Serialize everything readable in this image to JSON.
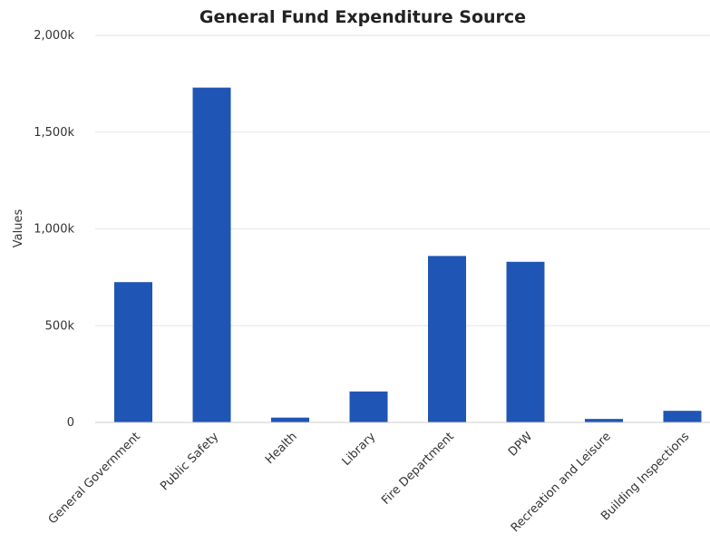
{
  "chart_data": {
    "type": "bar",
    "title": "General Fund Expenditure Source",
    "xlabel": "",
    "ylabel": "Values",
    "categories": [
      "General Government",
      "Public Safety",
      "Health",
      "Library",
      "Fire Department",
      "DPW",
      "Recreation and Leisure",
      "Building Inspections"
    ],
    "values": [
      725000,
      1730000,
      25000,
      160000,
      860000,
      830000,
      18000,
      60000
    ],
    "ylim": [
      0,
      2000000
    ],
    "yticks": [
      0,
      500000,
      1000000,
      1500000,
      2000000
    ],
    "ytick_labels": [
      "0",
      "500k",
      "1,000k",
      "1,500k",
      "2,000k"
    ],
    "grid": true,
    "legend": "none",
    "bar_color": "#1f55b5"
  }
}
